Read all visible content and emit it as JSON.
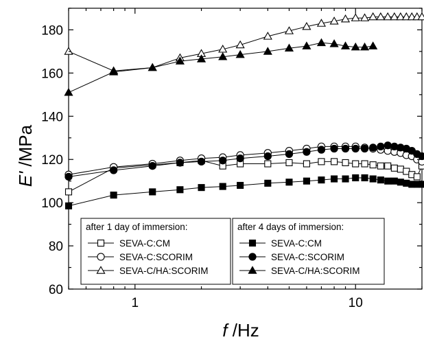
{
  "chart_data": {
    "type": "line",
    "xlabel_italic": "f",
    "xlabel_unit": " /Hz",
    "ylabel_italic": "E'",
    "ylabel_unit": " /MPa",
    "xscale": "log",
    "xlim": [
      0.5,
      20
    ],
    "ylim": [
      60,
      190
    ],
    "x_tick_labels": [
      {
        "value": 1,
        "label": "1"
      },
      {
        "value": 10,
        "label": "10"
      }
    ],
    "y_tick_labels": [
      {
        "value": 60,
        "label": "60"
      },
      {
        "value": 80,
        "label": "80"
      },
      {
        "value": 100,
        "label": "100"
      },
      {
        "value": 120,
        "label": "120"
      },
      {
        "value": 140,
        "label": "140"
      },
      {
        "value": 160,
        "label": "160"
      },
      {
        "value": 180,
        "label": "180"
      }
    ],
    "grid": false,
    "legend_groups": [
      {
        "title": "after 1 day of immersion:",
        "position": "bottom-left"
      },
      {
        "title": "after 4 days of immersion:",
        "position": "bottom-center"
      }
    ],
    "series": [
      {
        "name": "SEVA-C:CM",
        "group": 0,
        "marker": "square",
        "filled": false,
        "color": "#000000",
        "points": [
          [
            0.5,
            105
          ],
          [
            0.8,
            116
          ],
          [
            1.2,
            117.5
          ],
          [
            1.6,
            118.5
          ],
          [
            2.0,
            119.5
          ],
          [
            2.5,
            117
          ],
          [
            3.0,
            118
          ],
          [
            4.0,
            118
          ],
          [
            5.0,
            118.5
          ],
          [
            6.0,
            118
          ],
          [
            7.0,
            119
          ],
          [
            8.0,
            119
          ],
          [
            9.0,
            118.5
          ],
          [
            10.0,
            118
          ],
          [
            11.0,
            118
          ],
          [
            12.0,
            117.5
          ],
          [
            13.0,
            117
          ],
          [
            14.0,
            117
          ],
          [
            15.0,
            116
          ],
          [
            16.0,
            115.5
          ],
          [
            17.0,
            114.5
          ],
          [
            18.0,
            113
          ],
          [
            19.0,
            112
          ],
          [
            20.0,
            117
          ]
        ]
      },
      {
        "name": "SEVA-C:SCORIM",
        "group": 0,
        "marker": "circle",
        "filled": false,
        "color": "#000000",
        "points": [
          [
            0.5,
            113
          ],
          [
            0.8,
            116.5
          ],
          [
            1.2,
            118
          ],
          [
            1.6,
            119.5
          ],
          [
            2.0,
            120.5
          ],
          [
            2.5,
            121
          ],
          [
            3.0,
            122
          ],
          [
            4.0,
            123
          ],
          [
            5.0,
            124
          ],
          [
            6.0,
            125
          ],
          [
            7.0,
            126
          ],
          [
            8.0,
            126
          ],
          [
            9.0,
            126
          ],
          [
            10.0,
            126
          ],
          [
            11.0,
            125.5
          ],
          [
            12.0,
            125
          ],
          [
            13.0,
            124.5
          ],
          [
            14.0,
            124
          ],
          [
            15.0,
            123.5
          ],
          [
            16.0,
            123
          ],
          [
            17.0,
            122
          ],
          [
            18.0,
            121.5
          ],
          [
            19.0,
            120
          ],
          [
            20.0,
            119
          ]
        ]
      },
      {
        "name": "SEVA-C/HA:SCORIM",
        "group": 0,
        "marker": "triangle",
        "filled": false,
        "color": "#000000",
        "points": [
          [
            0.5,
            170
          ],
          [
            0.8,
            161
          ],
          [
            1.2,
            162.5
          ],
          [
            1.6,
            167
          ],
          [
            2.0,
            169
          ],
          [
            2.5,
            171
          ],
          [
            3.0,
            173
          ],
          [
            4.0,
            177
          ],
          [
            5.0,
            179.5
          ],
          [
            6.0,
            181.5
          ],
          [
            7.0,
            183
          ],
          [
            8.0,
            184
          ],
          [
            9.0,
            185
          ],
          [
            10.0,
            185.5
          ],
          [
            11.0,
            185.5
          ],
          [
            12.0,
            186
          ],
          [
            13.0,
            186
          ],
          [
            14.0,
            186
          ],
          [
            15.0,
            186
          ],
          [
            16.0,
            186
          ],
          [
            17.0,
            186
          ],
          [
            18.0,
            186
          ],
          [
            19.0,
            186
          ],
          [
            20.0,
            186
          ]
        ]
      },
      {
        "name": "SEVA-C:CM",
        "group": 1,
        "marker": "square",
        "filled": true,
        "color": "#000000",
        "points": [
          [
            0.5,
            98.5
          ],
          [
            0.8,
            103.5
          ],
          [
            1.2,
            105
          ],
          [
            1.6,
            106
          ],
          [
            2.0,
            107
          ],
          [
            2.5,
            107.5
          ],
          [
            3.0,
            108
          ],
          [
            4.0,
            109
          ],
          [
            5.0,
            109.5
          ],
          [
            6.0,
            110
          ],
          [
            7.0,
            110.5
          ],
          [
            8.0,
            111
          ],
          [
            9.0,
            111
          ],
          [
            10.0,
            111.5
          ],
          [
            11.0,
            111.5
          ],
          [
            12.0,
            111
          ],
          [
            13.0,
            110.5
          ],
          [
            14.0,
            110
          ],
          [
            15.0,
            110
          ],
          [
            16.0,
            109.5
          ],
          [
            17.0,
            109
          ],
          [
            18.0,
            108.5
          ],
          [
            19.0,
            108.5
          ],
          [
            20.0,
            108.5
          ]
        ]
      },
      {
        "name": "SEVA-C:SCORIM",
        "group": 1,
        "marker": "circle",
        "filled": true,
        "color": "#000000",
        "points": [
          [
            0.5,
            112
          ],
          [
            0.8,
            115
          ],
          [
            1.2,
            117
          ],
          [
            1.6,
            118.5
          ],
          [
            2.0,
            119
          ],
          [
            2.5,
            119.5
          ],
          [
            3.0,
            120.5
          ],
          [
            4.0,
            121.5
          ],
          [
            5.0,
            122.5
          ],
          [
            6.0,
            123.5
          ],
          [
            7.0,
            124.5
          ],
          [
            8.0,
            125
          ],
          [
            9.0,
            125
          ],
          [
            10.0,
            125
          ],
          [
            11.0,
            125
          ],
          [
            12.0,
            125.5
          ],
          [
            13.0,
            126
          ],
          [
            14.0,
            126.5
          ],
          [
            15.0,
            126
          ],
          [
            16.0,
            125.5
          ],
          [
            17.0,
            125
          ],
          [
            18.0,
            124
          ],
          [
            19.0,
            122.5
          ],
          [
            20.0,
            121.5
          ]
        ]
      },
      {
        "name": "SEVA-C/HA:SCORIM",
        "group": 1,
        "marker": "triangle",
        "filled": true,
        "color": "#000000",
        "points": [
          [
            0.5,
            151
          ],
          [
            0.8,
            160.5
          ],
          [
            1.2,
            162.5
          ],
          [
            1.6,
            165.5
          ],
          [
            2.0,
            166.5
          ],
          [
            2.5,
            167.5
          ],
          [
            3.0,
            168.5
          ],
          [
            4.0,
            170
          ],
          [
            5.0,
            171.5
          ],
          [
            6.0,
            172.5
          ],
          [
            7.0,
            174
          ],
          [
            8.0,
            173.5
          ],
          [
            9.0,
            172.5
          ],
          [
            10.0,
            172
          ],
          [
            11.0,
            172
          ],
          [
            12.0,
            172.5
          ]
        ]
      }
    ]
  }
}
